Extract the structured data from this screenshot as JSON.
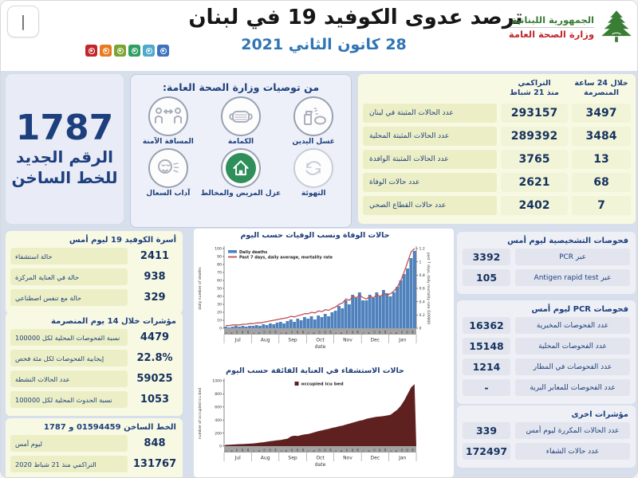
{
  "header": {
    "window_glyph": "|",
    "title": "ترصد عدوى الكوفيد 19 في لبنان",
    "date": "28 كانون الثاني 2021",
    "logo": {
      "line1": "الجمهورية اللبنانية",
      "line2": "وزارة الصحة العامة"
    },
    "dot_colors": [
      "#c1272d",
      "#e8791f",
      "#7aa52f",
      "#2f9e62",
      "#4fa9cb",
      "#3c72c0"
    ]
  },
  "hotline_card": {
    "number": "1787",
    "caption_line1": "الرقم الجديد",
    "caption_line2": "للخط الساخن"
  },
  "recommendations": {
    "title": "من توصيات وزارة الصحة العامة:",
    "items": [
      {
        "label": "المسافة الآمنة",
        "icon": "safe-distance-icon"
      },
      {
        "label": "الكمامة",
        "icon": "face-mask-icon"
      },
      {
        "label": "غسل اليدين",
        "icon": "hand-wash-icon"
      },
      {
        "label": "آداب السعال",
        "icon": "cough-etiquette-icon"
      },
      {
        "label": "عزل المريض والمخالط",
        "icon": "home-isolation-icon"
      },
      {
        "label": "التهوئة",
        "icon": "ventilation-icon"
      }
    ]
  },
  "main_table": {
    "header_24h_line1": "خلال 24 ساعة",
    "header_24h_line2": "المنصرمة",
    "header_cum_line1": "التراكمي",
    "header_cum_line2": "منذ 21 شباط",
    "rows": [
      {
        "label": "عدد الحالات المثبتة في لبنان",
        "cumulative": "293157",
        "last_24h": "3497"
      },
      {
        "label": "عدد الحالات المثبتة المحلية",
        "cumulative": "289392",
        "last_24h": "3484"
      },
      {
        "label": "عدد الحالات المثبتة الوافدة",
        "cumulative": "3765",
        "last_24h": "13"
      },
      {
        "label": "عدد حالات الوفاة",
        "cumulative": "2621",
        "last_24h": "68"
      },
      {
        "label": "عدد حالات القطاع الصحي",
        "cumulative": "2402",
        "last_24h": "7"
      }
    ]
  },
  "covid_beds": {
    "title": "أسرة الكوفيد 19 ليوم أمس",
    "rows": [
      {
        "value": "2411",
        "label": "حالة استشفاء"
      },
      {
        "value": "938",
        "label": "حالة في العناية المركزة"
      },
      {
        "value": "329",
        "label": "حالة مع تنفس اصطناعي"
      }
    ]
  },
  "indicators_14d": {
    "title": "مؤشرات خلال 14 يوم المنصرمة",
    "rows": [
      {
        "value": "4479",
        "label": "نسبة الفحوصات المحلية لكل 100000"
      },
      {
        "value": "22.8%",
        "label": "إيجابية الفحوصات لكل مئة فحص"
      },
      {
        "value": "59025",
        "label": "عدد الحالات النشطة"
      },
      {
        "value": "1053",
        "label": "نسبة الحدوث المحلية لكل 100000"
      }
    ]
  },
  "hotline_stats": {
    "title": "الخط الساخن 01594459 و 1787",
    "rows": [
      {
        "value": "848",
        "label": "ليوم أمس"
      },
      {
        "value": "131767",
        "label": "التراكمي منذ 21 شباط 2020"
      }
    ]
  },
  "diagnostic_tests": {
    "title": "فحوصات التشخيصية ليوم أمس",
    "rows": [
      {
        "value": "3392",
        "label": "عبر PCR"
      },
      {
        "value": "105",
        "label": "عبر Antigen rapid test"
      }
    ]
  },
  "pcr_tests": {
    "title": "فحوصات PCR ليوم أمس",
    "rows": [
      {
        "value": "16362",
        "label": "عدد الفحوصات المخبرية"
      },
      {
        "value": "15148",
        "label": "عدد الفحوصات المحلية"
      },
      {
        "value": "1214",
        "label": "عدد الفحوصات في المطار"
      },
      {
        "value": "-",
        "label": "عدد الفحوصات للمعابر البرية"
      }
    ]
  },
  "other_indicators": {
    "title": "مؤشرات اخرى",
    "rows": [
      {
        "value": "339",
        "label": "عدد الحالات المكررة ليوم أمس"
      },
      {
        "value": "172497",
        "label": "عدد حالات الشفاء"
      }
    ]
  },
  "chart_data": [
    {
      "type": "bar",
      "subtype": "combo-bar-line",
      "title": "حالات الوفاة ونسب الوفيات حسب اليوم",
      "xlabel": "date",
      "ylabel": "daily number of deaths",
      "y2label": "past 7 days, daily mortality rate /100000",
      "x_months": [
        "Jul",
        "Aug",
        "Sep",
        "Oct",
        "Nov",
        "Dec",
        "Jan"
      ],
      "day_ticks": [
        "1",
        "8",
        "15",
        "22",
        "29"
      ],
      "ylim": [
        0,
        100
      ],
      "y2lim": [
        0,
        1.2
      ],
      "legend_position": "top-left",
      "grid": false,
      "series": [
        {
          "name": "Daily deaths",
          "type": "bar",
          "axis": "left",
          "color": "#4f81bd",
          "values": [
            2,
            1,
            2,
            3,
            2,
            3,
            2,
            3,
            3,
            4,
            3,
            5,
            4,
            6,
            5,
            7,
            8,
            6,
            9,
            11,
            8,
            12,
            10,
            14,
            12,
            15,
            11,
            16,
            14,
            18,
            15,
            20,
            22,
            28,
            25,
            35,
            30,
            42,
            38,
            45,
            35,
            35,
            42,
            38,
            45,
            40,
            48,
            44,
            40,
            45,
            52,
            60,
            68,
            75,
            88,
            97
          ]
        },
        {
          "name": "Past 7 days, daily average, mortality rate",
          "type": "line",
          "axis": "right",
          "color": "#c0504d",
          "values": [
            0.04,
            0.04,
            0.05,
            0.05,
            0.05,
            0.06,
            0.06,
            0.07,
            0.07,
            0.08,
            0.08,
            0.09,
            0.1,
            0.11,
            0.12,
            0.13,
            0.14,
            0.15,
            0.16,
            0.18,
            0.17,
            0.19,
            0.2,
            0.22,
            0.22,
            0.24,
            0.23,
            0.26,
            0.25,
            0.28,
            0.27,
            0.3,
            0.32,
            0.36,
            0.38,
            0.44,
            0.42,
            0.48,
            0.46,
            0.5,
            0.46,
            0.44,
            0.48,
            0.46,
            0.5,
            0.48,
            0.52,
            0.5,
            0.52,
            0.56,
            0.62,
            0.72,
            0.85,
            1.0,
            1.15,
            1.2
          ]
        }
      ]
    },
    {
      "type": "area",
      "title": "حالات الاستشفاء في العناية الفائقة حسب اليوم",
      "xlabel": "date",
      "ylabel": "number of occupied icu bed",
      "x_months": [
        "Jul",
        "Aug",
        "Sep",
        "Oct",
        "Nov",
        "Dec",
        "Jan"
      ],
      "day_ticks": [
        "1",
        "8",
        "15",
        "22",
        "29"
      ],
      "ylim": [
        0,
        1000
      ],
      "legend_position": "top-center",
      "grid": false,
      "series": [
        {
          "name": "occupied icu bed",
          "type": "area",
          "axis": "left",
          "color": "#5f2120",
          "values": [
            20,
            22,
            25,
            28,
            30,
            32,
            35,
            38,
            42,
            48,
            55,
            60,
            68,
            75,
            82,
            90,
            95,
            105,
            115,
            150,
            160,
            155,
            170,
            180,
            185,
            200,
            215,
            230,
            240,
            255,
            265,
            280,
            290,
            305,
            315,
            330,
            345,
            360,
            375,
            390,
            400,
            420,
            430,
            440,
            450,
            455,
            460,
            470,
            480,
            520,
            560,
            620,
            700,
            800,
            900,
            950
          ]
        }
      ]
    }
  ]
}
